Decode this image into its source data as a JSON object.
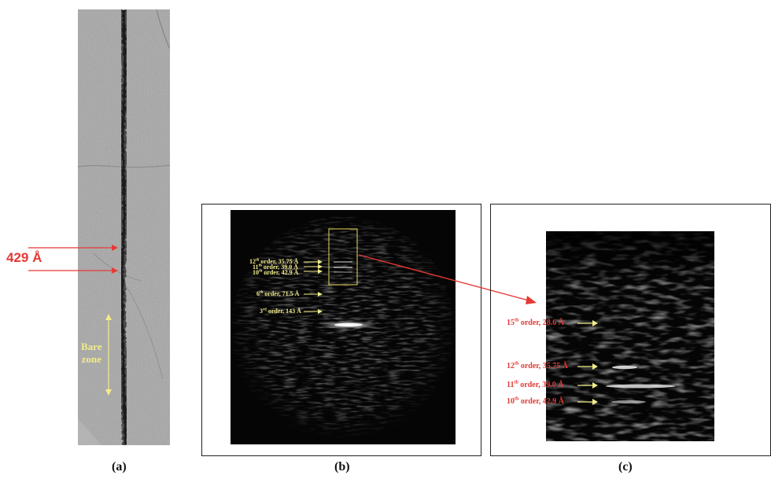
{
  "panel_a": {
    "caption": "(a)",
    "spacing_label": "429 Å",
    "bare_zone_line1": "Bare",
    "bare_zone_line2": "zone"
  },
  "panel_b": {
    "caption": "(b)",
    "orders": [
      {
        "num": "12",
        "sup": "th",
        "rest": " order, 35.75 Å"
      },
      {
        "num": "11",
        "sup": "th",
        "rest": " order, 39.0 Å"
      },
      {
        "num": "10",
        "sup": "th",
        "rest": " order, 42.9 Å"
      },
      {
        "num": "6",
        "sup": "th",
        "rest": " order, 71.5 Å"
      },
      {
        "num": "3",
        "sup": "rd",
        "rest": " order, 143 Å"
      }
    ]
  },
  "panel_c": {
    "caption": "(c)",
    "orders": [
      {
        "num": "15",
        "sup": "th",
        "rest": " order, 28.6 Å"
      },
      {
        "num": "12",
        "sup": "th",
        "rest": " order, 35.75 Å"
      },
      {
        "num": "11",
        "sup": "th",
        "rest": " order, 39.0 Å"
      },
      {
        "num": "10",
        "sup": "th",
        "rest": " order, 42.9 Å"
      }
    ]
  },
  "colors": {
    "annotation_red": "#e53935",
    "annotation_yellow": "#f2ec8a",
    "micrograph_gray": "#9c9c9c",
    "diffraction_black": "#050505"
  }
}
